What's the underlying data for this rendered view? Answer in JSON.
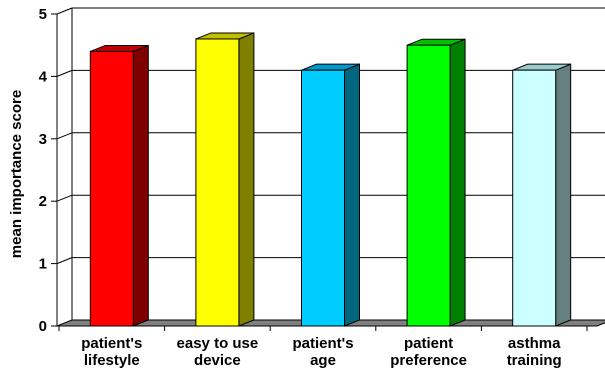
{
  "chart_data": {
    "type": "bar",
    "title": "",
    "xlabel": "",
    "ylabel": "mean importance score",
    "ylim": [
      0,
      5
    ],
    "yticks": [
      "0",
      "1",
      "2",
      "3",
      "4",
      "5"
    ],
    "grid": true,
    "legend": "none",
    "categories": [
      {
        "lines": [
          "patient's",
          "lifestyle"
        ],
        "value": 4.4,
        "front": "#ff0000",
        "side": "#800000",
        "top": "#c00000"
      },
      {
        "lines": [
          "easy to use",
          "device"
        ],
        "value": 4.6,
        "front": "#ffff00",
        "side": "#808000",
        "top": "#c0c000"
      },
      {
        "lines": [
          "patient's",
          "age"
        ],
        "value": 4.1,
        "front": "#00ccff",
        "side": "#006680",
        "top": "#0099cc"
      },
      {
        "lines": [
          "patient",
          "preference"
        ],
        "value": 4.5,
        "front": "#00ff00",
        "side": "#008000",
        "top": "#00c000"
      },
      {
        "lines": [
          "asthma",
          "training"
        ],
        "value": 4.1,
        "front": "#ccffff",
        "side": "#668080",
        "top": "#99cccc"
      }
    ]
  }
}
